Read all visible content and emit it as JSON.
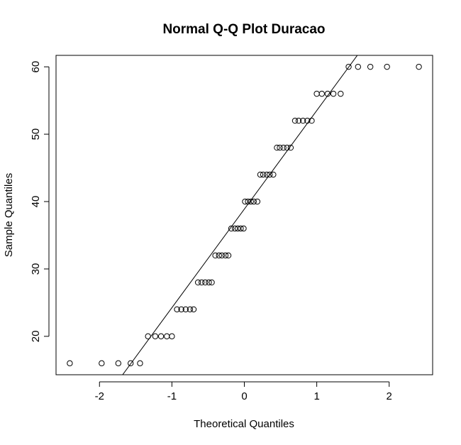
{
  "chart_data": {
    "type": "scatter",
    "title": "Normal Q-Q Plot Duracao",
    "xlabel": "Theoretical Quantiles",
    "ylabel": "Sample Quantiles",
    "xlim": [
      -2.6,
      2.6
    ],
    "ylim": [
      14.3,
      61.7
    ],
    "x_ticks": [
      -2,
      -1,
      0,
      1,
      2
    ],
    "x_tick_labels": [
      "-2",
      "-1",
      "0",
      "1",
      "2"
    ],
    "y_ticks": [
      20,
      30,
      40,
      50,
      60
    ],
    "y_tick_labels": [
      "20",
      "30",
      "40",
      "50",
      "60"
    ],
    "grid": false,
    "reference_line": {
      "slope": 14.63,
      "intercept": 38.88
    },
    "x": [
      -2.41,
      -1.97,
      -1.74,
      -1.57,
      -1.44,
      -1.33,
      -1.23,
      -1.15,
      -1.07,
      -1.0,
      -0.93,
      -0.87,
      -0.81,
      -0.75,
      -0.7,
      -0.64,
      -0.59,
      -0.54,
      -0.49,
      -0.45,
      -0.4,
      -0.35,
      -0.31,
      -0.26,
      -0.22,
      -0.18,
      -0.13,
      -0.09,
      -0.05,
      -0.01,
      0.01,
      0.05,
      0.09,
      0.13,
      0.18,
      0.22,
      0.26,
      0.31,
      0.35,
      0.4,
      0.45,
      0.49,
      0.54,
      0.59,
      0.64,
      0.7,
      0.75,
      0.81,
      0.87,
      0.93,
      1.0,
      1.07,
      1.15,
      1.23,
      1.33,
      1.44,
      1.57,
      1.74,
      1.97,
      2.41
    ],
    "y": [
      16,
      16,
      16,
      16,
      16,
      20,
      20,
      20,
      20,
      20,
      24,
      24,
      24,
      24,
      24,
      28,
      28,
      28,
      28,
      28,
      32,
      32,
      32,
      32,
      32,
      36,
      36,
      36,
      36,
      36,
      40,
      40,
      40,
      40,
      40,
      44,
      44,
      44,
      44,
      44,
      48,
      48,
      48,
      48,
      48,
      52,
      52,
      52,
      52,
      52,
      56,
      56,
      56,
      56,
      56,
      60,
      60,
      60,
      60,
      60
    ]
  }
}
